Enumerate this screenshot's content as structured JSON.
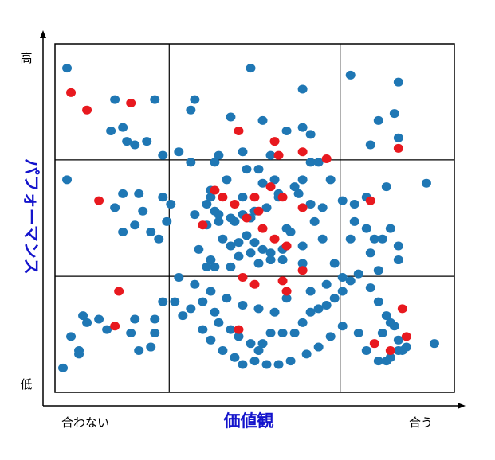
{
  "chart_data": {
    "type": "scatter",
    "title": "",
    "xlabel": "価値観",
    "ylabel": "パフォーマンス",
    "x_tick_labels": {
      "low": "合わない",
      "high": "合う"
    },
    "y_tick_labels": {
      "low": "低",
      "high": "高"
    },
    "xlim": [
      0,
      100
    ],
    "ylim": [
      0,
      100
    ],
    "grid": {
      "rows": 3,
      "cols": 3,
      "x_dividers": [
        28.6,
        71.4
      ],
      "y_dividers": [
        33.3,
        66.7
      ]
    },
    "legend": "none",
    "colors": {
      "blue": "#1f77b4",
      "red": "#e8191f",
      "axis_title": "#1414cc",
      "text": "#000000"
    },
    "series": [
      {
        "color": "blue",
        "points": [
          [
            3,
            93
          ],
          [
            15,
            84
          ],
          [
            25,
            84
          ],
          [
            35,
            84
          ],
          [
            49,
            93
          ],
          [
            62,
            87
          ],
          [
            74,
            91
          ],
          [
            86,
            89
          ],
          [
            34,
            81
          ],
          [
            44,
            79
          ],
          [
            52,
            78
          ],
          [
            58,
            75
          ],
          [
            62,
            76
          ],
          [
            64,
            74
          ],
          [
            79,
            71
          ],
          [
            81,
            78
          ],
          [
            85,
            80
          ],
          [
            86,
            73
          ],
          [
            17,
            76
          ],
          [
            14,
            75
          ],
          [
            18,
            72
          ],
          [
            20,
            71
          ],
          [
            23,
            72
          ],
          [
            27,
            68
          ],
          [
            31,
            69
          ],
          [
            34,
            66
          ],
          [
            40,
            66
          ],
          [
            41,
            68
          ],
          [
            47,
            69
          ],
          [
            54,
            68
          ],
          [
            64,
            66
          ],
          [
            66,
            66
          ],
          [
            3,
            61
          ],
          [
            17,
            57
          ],
          [
            21,
            57
          ],
          [
            27,
            56
          ],
          [
            29,
            54
          ],
          [
            15,
            53
          ],
          [
            22,
            52
          ],
          [
            28,
            49
          ],
          [
            20,
            48
          ],
          [
            17,
            46
          ],
          [
            24,
            46
          ],
          [
            26,
            44
          ],
          [
            38,
            54
          ],
          [
            39,
            56
          ],
          [
            40,
            52
          ],
          [
            45,
            49
          ],
          [
            49,
            50
          ],
          [
            52,
            60
          ],
          [
            56,
            57
          ],
          [
            61,
            57
          ],
          [
            64,
            54
          ],
          [
            67,
            53
          ],
          [
            69,
            61
          ],
          [
            72,
            55
          ],
          [
            38,
            48
          ],
          [
            41,
            49
          ],
          [
            44,
            50
          ],
          [
            47,
            51
          ],
          [
            50,
            52
          ],
          [
            53,
            53
          ],
          [
            56,
            56
          ],
          [
            58,
            47
          ],
          [
            36,
            41
          ],
          [
            39,
            38
          ],
          [
            42,
            44
          ],
          [
            44,
            42
          ],
          [
            46,
            43
          ],
          [
            48,
            45
          ],
          [
            50,
            43
          ],
          [
            52,
            41
          ],
          [
            54,
            40
          ],
          [
            57,
            41
          ],
          [
            59,
            46
          ],
          [
            62,
            42
          ],
          [
            65,
            49
          ],
          [
            67,
            44
          ],
          [
            70,
            37
          ],
          [
            62,
            37
          ],
          [
            57,
            38
          ],
          [
            54,
            38
          ],
          [
            51,
            37
          ],
          [
            49,
            40
          ],
          [
            46,
            39
          ],
          [
            44,
            36
          ],
          [
            40,
            36
          ],
          [
            38,
            36
          ],
          [
            75,
            49
          ],
          [
            78,
            47
          ],
          [
            80,
            44
          ],
          [
            82,
            44
          ],
          [
            74,
            44
          ],
          [
            81,
            35
          ],
          [
            79,
            40
          ],
          [
            86,
            42
          ],
          [
            39,
            58
          ],
          [
            41,
            51
          ],
          [
            35,
            51
          ],
          [
            47,
            56
          ],
          [
            43,
            61
          ],
          [
            48,
            64
          ],
          [
            51,
            64
          ],
          [
            55,
            61
          ],
          [
            60,
            59
          ],
          [
            62,
            61
          ],
          [
            75,
            54
          ],
          [
            78,
            56
          ],
          [
            83,
            59
          ],
          [
            93,
            60
          ],
          [
            86,
            38
          ],
          [
            84,
            47
          ],
          [
            79,
            30
          ],
          [
            81,
            26
          ],
          [
            83,
            22
          ],
          [
            84,
            20
          ],
          [
            85,
            19
          ],
          [
            86,
            15
          ],
          [
            86,
            12
          ],
          [
            84,
            10
          ],
          [
            81,
            9
          ],
          [
            83,
            9
          ],
          [
            87,
            12
          ],
          [
            88,
            13
          ],
          [
            95,
            14
          ],
          [
            78,
            12
          ],
          [
            82,
            17
          ],
          [
            76,
            17
          ],
          [
            27,
            26
          ],
          [
            25,
            21
          ],
          [
            25,
            17
          ],
          [
            24,
            13
          ],
          [
            21,
            12
          ],
          [
            20,
            21
          ],
          [
            19,
            17
          ],
          [
            13,
            18
          ],
          [
            11,
            21
          ],
          [
            8,
            20
          ],
          [
            7,
            22
          ],
          [
            6,
            12
          ],
          [
            6,
            11
          ],
          [
            30,
            26
          ],
          [
            37,
            26
          ],
          [
            32,
            22
          ],
          [
            34,
            24
          ],
          [
            40,
            23
          ],
          [
            41,
            20
          ],
          [
            44,
            18
          ],
          [
            46,
            16
          ],
          [
            49,
            14
          ],
          [
            51,
            12
          ],
          [
            52,
            14
          ],
          [
            54,
            17
          ],
          [
            57,
            17
          ],
          [
            60,
            17
          ],
          [
            62,
            20
          ],
          [
            64,
            23
          ],
          [
            66,
            24
          ],
          [
            68,
            25
          ],
          [
            70,
            27
          ],
          [
            72,
            29
          ],
          [
            74,
            32
          ],
          [
            76,
            34
          ],
          [
            37,
            18
          ],
          [
            39,
            15
          ],
          [
            42,
            12
          ],
          [
            45,
            10
          ],
          [
            47,
            8
          ],
          [
            50,
            9
          ],
          [
            53,
            8
          ],
          [
            56,
            8
          ],
          [
            59,
            9
          ],
          [
            63,
            11
          ],
          [
            66,
            13
          ],
          [
            69,
            16
          ],
          [
            72,
            19
          ],
          [
            2,
            7
          ],
          [
            4,
            16
          ],
          [
            31,
            33
          ],
          [
            35,
            31
          ],
          [
            39,
            29
          ],
          [
            43,
            27
          ],
          [
            47,
            25
          ],
          [
            51,
            24
          ],
          [
            55,
            23
          ],
          [
            58,
            27
          ],
          [
            64,
            29
          ],
          [
            68,
            31
          ],
          [
            72,
            33
          ]
        ]
      },
      {
        "color": "red",
        "points": [
          [
            4,
            86
          ],
          [
            8,
            81
          ],
          [
            19,
            83
          ],
          [
            46,
            75
          ],
          [
            55,
            72
          ],
          [
            56,
            68
          ],
          [
            62,
            69
          ],
          [
            68,
            67
          ],
          [
            11,
            55
          ],
          [
            40,
            58
          ],
          [
            42,
            56
          ],
          [
            45,
            54
          ],
          [
            50,
            56
          ],
          [
            51,
            52
          ],
          [
            54,
            59
          ],
          [
            57,
            56
          ],
          [
            62,
            53
          ],
          [
            37,
            48
          ],
          [
            48,
            50
          ],
          [
            52,
            47
          ],
          [
            55,
            44
          ],
          [
            58,
            42
          ],
          [
            79,
            55
          ],
          [
            86,
            70
          ],
          [
            47,
            33
          ],
          [
            50,
            31
          ],
          [
            57,
            32
          ],
          [
            62,
            35
          ],
          [
            58,
            29
          ],
          [
            16,
            29
          ],
          [
            15,
            19
          ],
          [
            46,
            18
          ],
          [
            80,
            14
          ],
          [
            84,
            12
          ],
          [
            88,
            16
          ],
          [
            87,
            24
          ]
        ]
      }
    ]
  }
}
